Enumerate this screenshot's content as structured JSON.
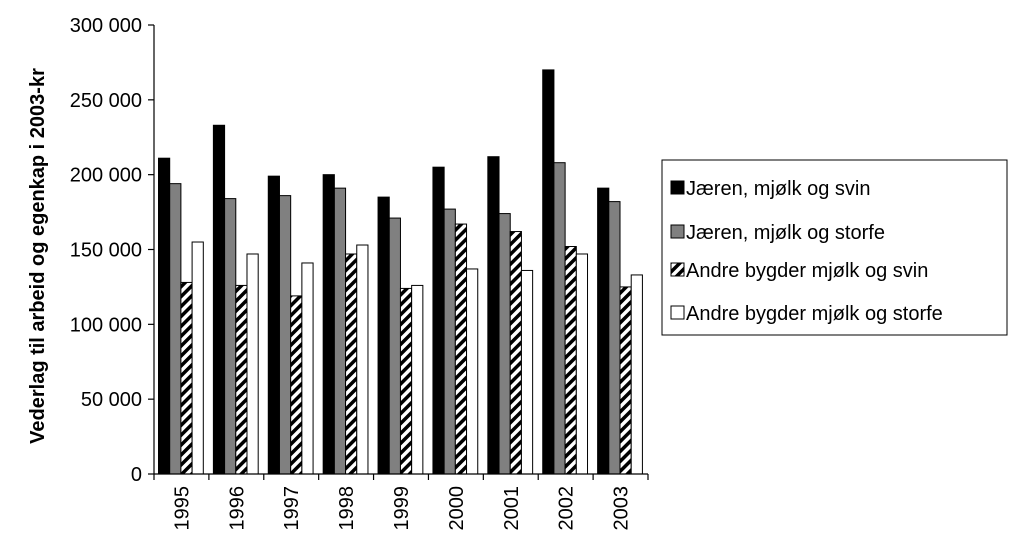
{
  "chart_data": {
    "type": "bar",
    "ylabel": "Vederlag til arbeid og egenkap i 2003-kr",
    "xlabel": "",
    "categories": [
      "1995",
      "1996",
      "1997",
      "1998",
      "1999",
      "2000",
      "2001",
      "2002",
      "2003"
    ],
    "ylim": [
      0,
      300000
    ],
    "yticks": [
      0,
      50000,
      100000,
      150000,
      200000,
      250000,
      300000
    ],
    "ytick_labels": [
      "0",
      "50 000",
      "100 000",
      "150 000",
      "200 000",
      "250 000",
      "300 000"
    ],
    "grid": false,
    "legend_position": "right",
    "series": [
      {
        "name": "Jæren, mjølk og svin",
        "fill": "#000000",
        "pattern": "solid",
        "values": [
          211000,
          233000,
          199000,
          200000,
          185000,
          205000,
          212000,
          270000,
          191000
        ]
      },
      {
        "name": "Jæren, mjølk og storfe",
        "fill": "#808080",
        "pattern": "solid",
        "values": [
          194000,
          184000,
          186000,
          191000,
          171000,
          177000,
          174000,
          208000,
          182000
        ]
      },
      {
        "name": "Andre bygder mjølk og svin",
        "fill": "#ffffff",
        "pattern": "diagonal-hatch",
        "values": [
          128000,
          126000,
          119000,
          147000,
          124000,
          167000,
          162000,
          152000,
          125000
        ]
      },
      {
        "name": "Andre bygder mjølk og storfe",
        "fill": "#ffffff",
        "pattern": "solid",
        "values": [
          155000,
          147000,
          141000,
          153000,
          126000,
          137000,
          136000,
          147000,
          133000
        ]
      }
    ]
  }
}
